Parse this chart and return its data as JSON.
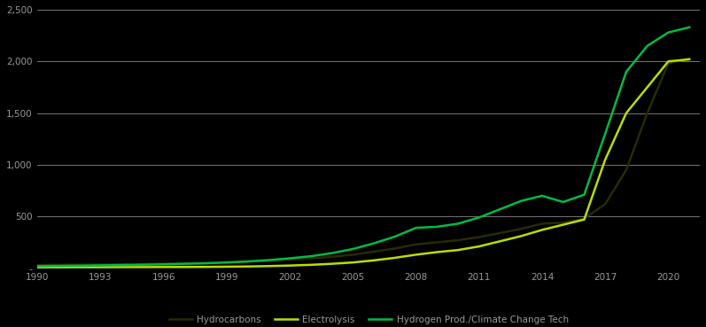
{
  "background_color": "#000000",
  "plot_bg_color": "#000000",
  "grid_color": "#888888",
  "text_color": "#999999",
  "years": [
    1990,
    1991,
    1992,
    1993,
    1994,
    1995,
    1996,
    1997,
    1998,
    1999,
    2000,
    2001,
    2002,
    2003,
    2004,
    2005,
    2006,
    2007,
    2008,
    2009,
    2010,
    2011,
    2012,
    2013,
    2014,
    2015,
    2016,
    2017,
    2018,
    2019,
    2020,
    2021
  ],
  "hydrocarbons": [
    30,
    32,
    34,
    36,
    38,
    40,
    43,
    46,
    50,
    55,
    62,
    70,
    82,
    95,
    110,
    130,
    160,
    190,
    230,
    250,
    270,
    300,
    340,
    380,
    430,
    440,
    480,
    620,
    950,
    1500,
    1980,
    2030
  ],
  "electrolysis": [
    8,
    8,
    9,
    9,
    10,
    10,
    11,
    11,
    12,
    14,
    16,
    20,
    25,
    32,
    42,
    55,
    75,
    100,
    130,
    155,
    175,
    210,
    260,
    310,
    370,
    420,
    470,
    1050,
    1500,
    1750,
    2000,
    2020
  ],
  "hydrogen_prod": [
    20,
    22,
    24,
    27,
    30,
    33,
    37,
    42,
    47,
    55,
    65,
    78,
    95,
    115,
    145,
    185,
    240,
    305,
    390,
    400,
    430,
    490,
    570,
    650,
    700,
    640,
    710,
    1300,
    1900,
    2150,
    2280,
    2330
  ],
  "hydrocarbons_color": "#2a2a00",
  "electrolysis_color": "#bbdd00",
  "hydrogen_prod_color": "#00bb44",
  "ylim": [
    0,
    2500
  ],
  "yticks": [
    0,
    500,
    1000,
    1500,
    2000,
    2500
  ],
  "ytick_labels": [
    " -",
    "500",
    "1,000",
    "1,500",
    "2,000",
    "2,500"
  ],
  "xtick_years": [
    1990,
    1993,
    1996,
    1999,
    2002,
    2005,
    2008,
    2011,
    2014,
    2017,
    2020
  ],
  "xtick_labels": [
    "1990",
    "1993",
    "1996",
    "1999",
    "2002",
    "2005",
    "2008",
    "2011",
    "2014",
    "2017",
    "2020"
  ],
  "legend_labels": [
    "Hydrocarbons",
    "Electrolysis",
    "Hydrogen Prod./Climate Change Tech"
  ],
  "linewidth": 1.8,
  "figsize": [
    7.97,
    3.69
  ],
  "dpi": 100
}
